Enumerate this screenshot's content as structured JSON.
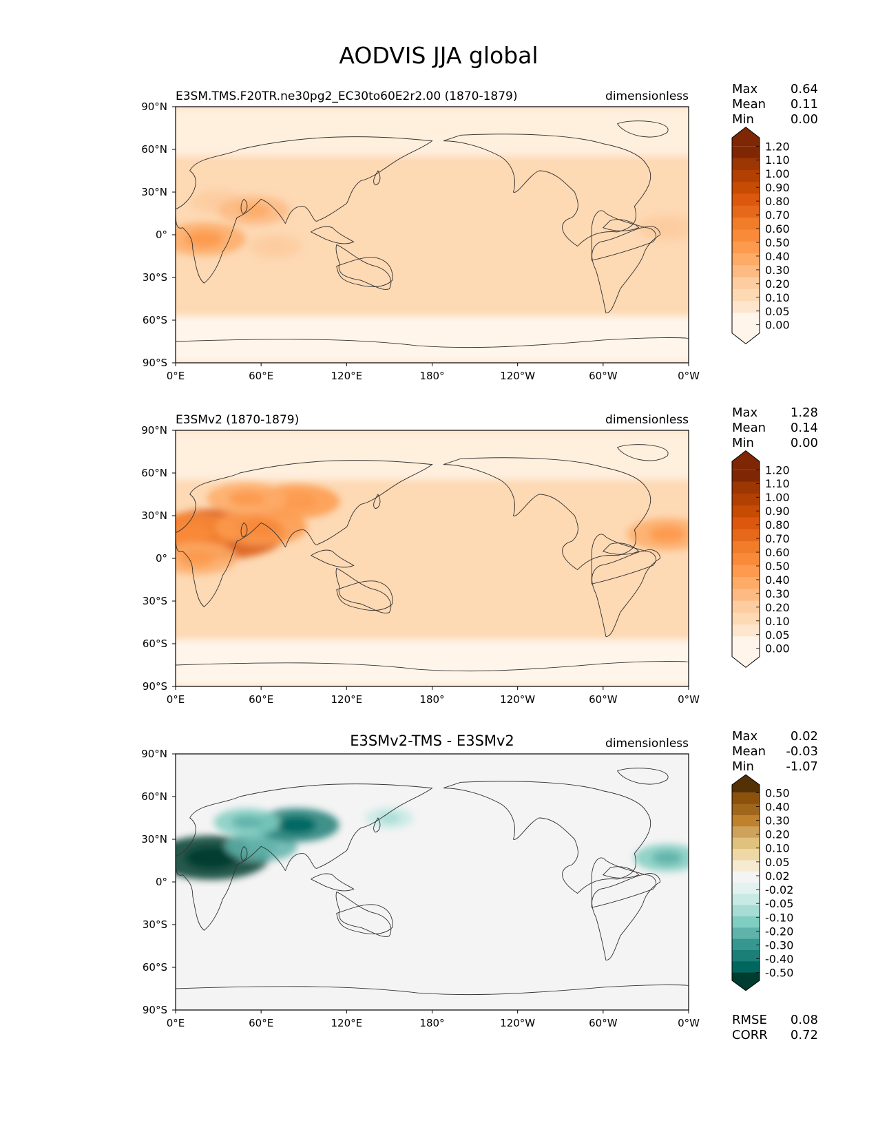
{
  "page_title": "AODVIS JJA global",
  "colors": {
    "seq": [
      "#fff5eb",
      "#fee6ce",
      "#fdd9b4",
      "#fdcca0",
      "#fdba83",
      "#fdab67",
      "#fd9a4e",
      "#f88a3a",
      "#f17c2a",
      "#e6681b",
      "#db580e",
      "#c64b03",
      "#b24003",
      "#9c3603",
      "#7f2704"
    ],
    "div": [
      "#003c30",
      "#01665e",
      "#1c7f77",
      "#35978f",
      "#5fb3aa",
      "#80cdc1",
      "#a6dcd4",
      "#c7eae5",
      "#e4f2ef",
      "#f4f4f4",
      "#f6ead0",
      "#eed8a6",
      "#dfc27d",
      "#cea25a",
      "#bf812d",
      "#a0661c",
      "#8c510a",
      "#543005"
    ],
    "land_line": "#333333"
  },
  "panels": [
    {
      "left_title": "E3SM.TMS.F20TR.ne30pg2_EC30to60E2r2.00 (1870-1879)",
      "center_title": "",
      "right_title": "dimensionless",
      "stats": [
        [
          "Max",
          "0.64"
        ],
        [
          "Mean",
          "0.11"
        ],
        [
          "Min",
          "0.00"
        ]
      ],
      "colorbar_labels": [
        "1.20",
        "1.10",
        "1.00",
        "0.90",
        "0.80",
        "0.70",
        "0.60",
        "0.50",
        "0.40",
        "0.30",
        "0.20",
        "0.10",
        "0.05",
        "0.00"
      ],
      "extra_stats": []
    },
    {
      "left_title": "E3SMv2 (1870-1879)",
      "center_title": "",
      "right_title": "dimensionless",
      "stats": [
        [
          "Max",
          "1.28"
        ],
        [
          "Mean",
          "0.14"
        ],
        [
          "Min",
          "0.00"
        ]
      ],
      "colorbar_labels": [
        "1.20",
        "1.10",
        "1.00",
        "0.90",
        "0.80",
        "0.70",
        "0.60",
        "0.50",
        "0.40",
        "0.30",
        "0.20",
        "0.10",
        "0.05",
        "0.00"
      ],
      "extra_stats": []
    },
    {
      "left_title": "",
      "center_title": "E3SMv2-TMS - E3SMv2",
      "right_title": "dimensionless",
      "stats": [
        [
          "Max",
          "0.02"
        ],
        [
          "Mean",
          "-0.03"
        ],
        [
          "Min",
          "-1.07"
        ]
      ],
      "colorbar_labels": [
        "0.50",
        "0.40",
        "0.30",
        "0.20",
        "0.10",
        "0.05",
        "0.02",
        "-0.02",
        "-0.05",
        "-0.10",
        "-0.20",
        "-0.30",
        "-0.40",
        "-0.50"
      ],
      "extra_stats": [
        [
          "RMSE",
          "0.08"
        ],
        [
          "CORR",
          "0.72"
        ]
      ]
    }
  ],
  "chart_data": [
    {
      "type": "heatmap",
      "title": "E3SM.TMS.F20TR.ne30pg2_EC30to60E2r2.00 (1870-1879)",
      "units": "dimensionless",
      "x_ticks": [
        "0°E",
        "60°E",
        "120°E",
        "180°",
        "120°W",
        "60°W",
        "0°W"
      ],
      "y_ticks": [
        "90°N",
        "60°N",
        "30°N",
        "0°",
        "30°S",
        "60°S",
        "90°S"
      ],
      "lon_range": [
        0,
        360
      ],
      "lat_range": [
        -90,
        90
      ],
      "contour_levels": [
        0.0,
        0.05,
        0.1,
        0.2,
        0.3,
        0.4,
        0.5,
        0.6,
        0.7,
        0.8,
        0.9,
        1.0,
        1.1,
        1.2
      ],
      "background": 0.11,
      "features": [
        {
          "lon": 20,
          "lat": -3,
          "value": 0.45,
          "note": "central Africa"
        },
        {
          "lon": 30,
          "lat": 23,
          "value": 0.22,
          "note": "Sahara"
        },
        {
          "lon": 55,
          "lat": 17,
          "value": 0.35,
          "note": "Arabia"
        },
        {
          "lon": 70,
          "lat": -8,
          "value": 0.2,
          "note": "Indian Ocean"
        },
        {
          "lon": 345,
          "lat": 5,
          "value": 0.25,
          "note": "tropical Atlantic"
        }
      ],
      "stats": {
        "Max": 0.64,
        "Mean": 0.11,
        "Min": 0.0
      }
    },
    {
      "type": "heatmap",
      "title": "E3SMv2 (1870-1879)",
      "units": "dimensionless",
      "x_ticks": [
        "0°E",
        "60°E",
        "120°E",
        "180°",
        "120°W",
        "60°W",
        "0°W"
      ],
      "y_ticks": [
        "90°N",
        "60°N",
        "30°N",
        "0°",
        "30°S",
        "60°S",
        "90°S"
      ],
      "lon_range": [
        0,
        360
      ],
      "lat_range": [
        -90,
        90
      ],
      "contour_levels": [
        0.0,
        0.05,
        0.1,
        0.2,
        0.3,
        0.4,
        0.5,
        0.6,
        0.7,
        0.8,
        0.9,
        1.0,
        1.1,
        1.2
      ],
      "background": 0.14,
      "features": [
        {
          "lon": 30,
          "lat": 17,
          "value": 0.9,
          "note": "Sahara/Sahel"
        },
        {
          "lon": 10,
          "lat": 18,
          "value": 0.6,
          "note": "west Africa"
        },
        {
          "lon": 15,
          "lat": 0,
          "value": 0.45,
          "note": "central Africa"
        },
        {
          "lon": 60,
          "lat": 22,
          "value": 0.55,
          "note": "Arabia"
        },
        {
          "lon": 85,
          "lat": 40,
          "value": 0.5,
          "note": "Taklimakan"
        },
        {
          "lon": 50,
          "lat": 42,
          "value": 0.45,
          "note": "central Asia"
        },
        {
          "lon": 345,
          "lat": 17,
          "value": 0.45,
          "note": "tropical Atlantic"
        }
      ],
      "stats": {
        "Max": 1.28,
        "Mean": 0.14,
        "Min": 0.0
      }
    },
    {
      "type": "heatmap",
      "title": "E3SMv2-TMS - E3SMv2",
      "units": "dimensionless",
      "x_ticks": [
        "0°E",
        "60°E",
        "120°E",
        "180°",
        "120°W",
        "60°W",
        "0°W"
      ],
      "y_ticks": [
        "90°N",
        "60°N",
        "30°N",
        "0°",
        "30°S",
        "60°S",
        "90°S"
      ],
      "lon_range": [
        0,
        360
      ],
      "lat_range": [
        -90,
        90
      ],
      "contour_levels": [
        -0.5,
        -0.4,
        -0.3,
        -0.2,
        -0.1,
        -0.05,
        -0.02,
        0.02,
        0.05,
        0.1,
        0.2,
        0.3,
        0.4,
        0.5
      ],
      "background": -0.01,
      "features": [
        {
          "lon": 25,
          "lat": 17,
          "value": -0.6,
          "note": "Sahara/Sahel"
        },
        {
          "lon": 60,
          "lat": 25,
          "value": -0.25,
          "note": "Arabia"
        },
        {
          "lon": 85,
          "lat": 40,
          "value": -0.35,
          "note": "Taklimakan"
        },
        {
          "lon": 50,
          "lat": 42,
          "value": -0.2,
          "note": "central Asia"
        },
        {
          "lon": 345,
          "lat": 17,
          "value": -0.2,
          "note": "tropical Atlantic"
        },
        {
          "lon": 150,
          "lat": 45,
          "value": -0.05,
          "note": "north Pacific"
        }
      ],
      "stats": {
        "Max": 0.02,
        "Mean": -0.03,
        "Min": -1.07,
        "RMSE": 0.08,
        "CORR": 0.72
      }
    }
  ]
}
